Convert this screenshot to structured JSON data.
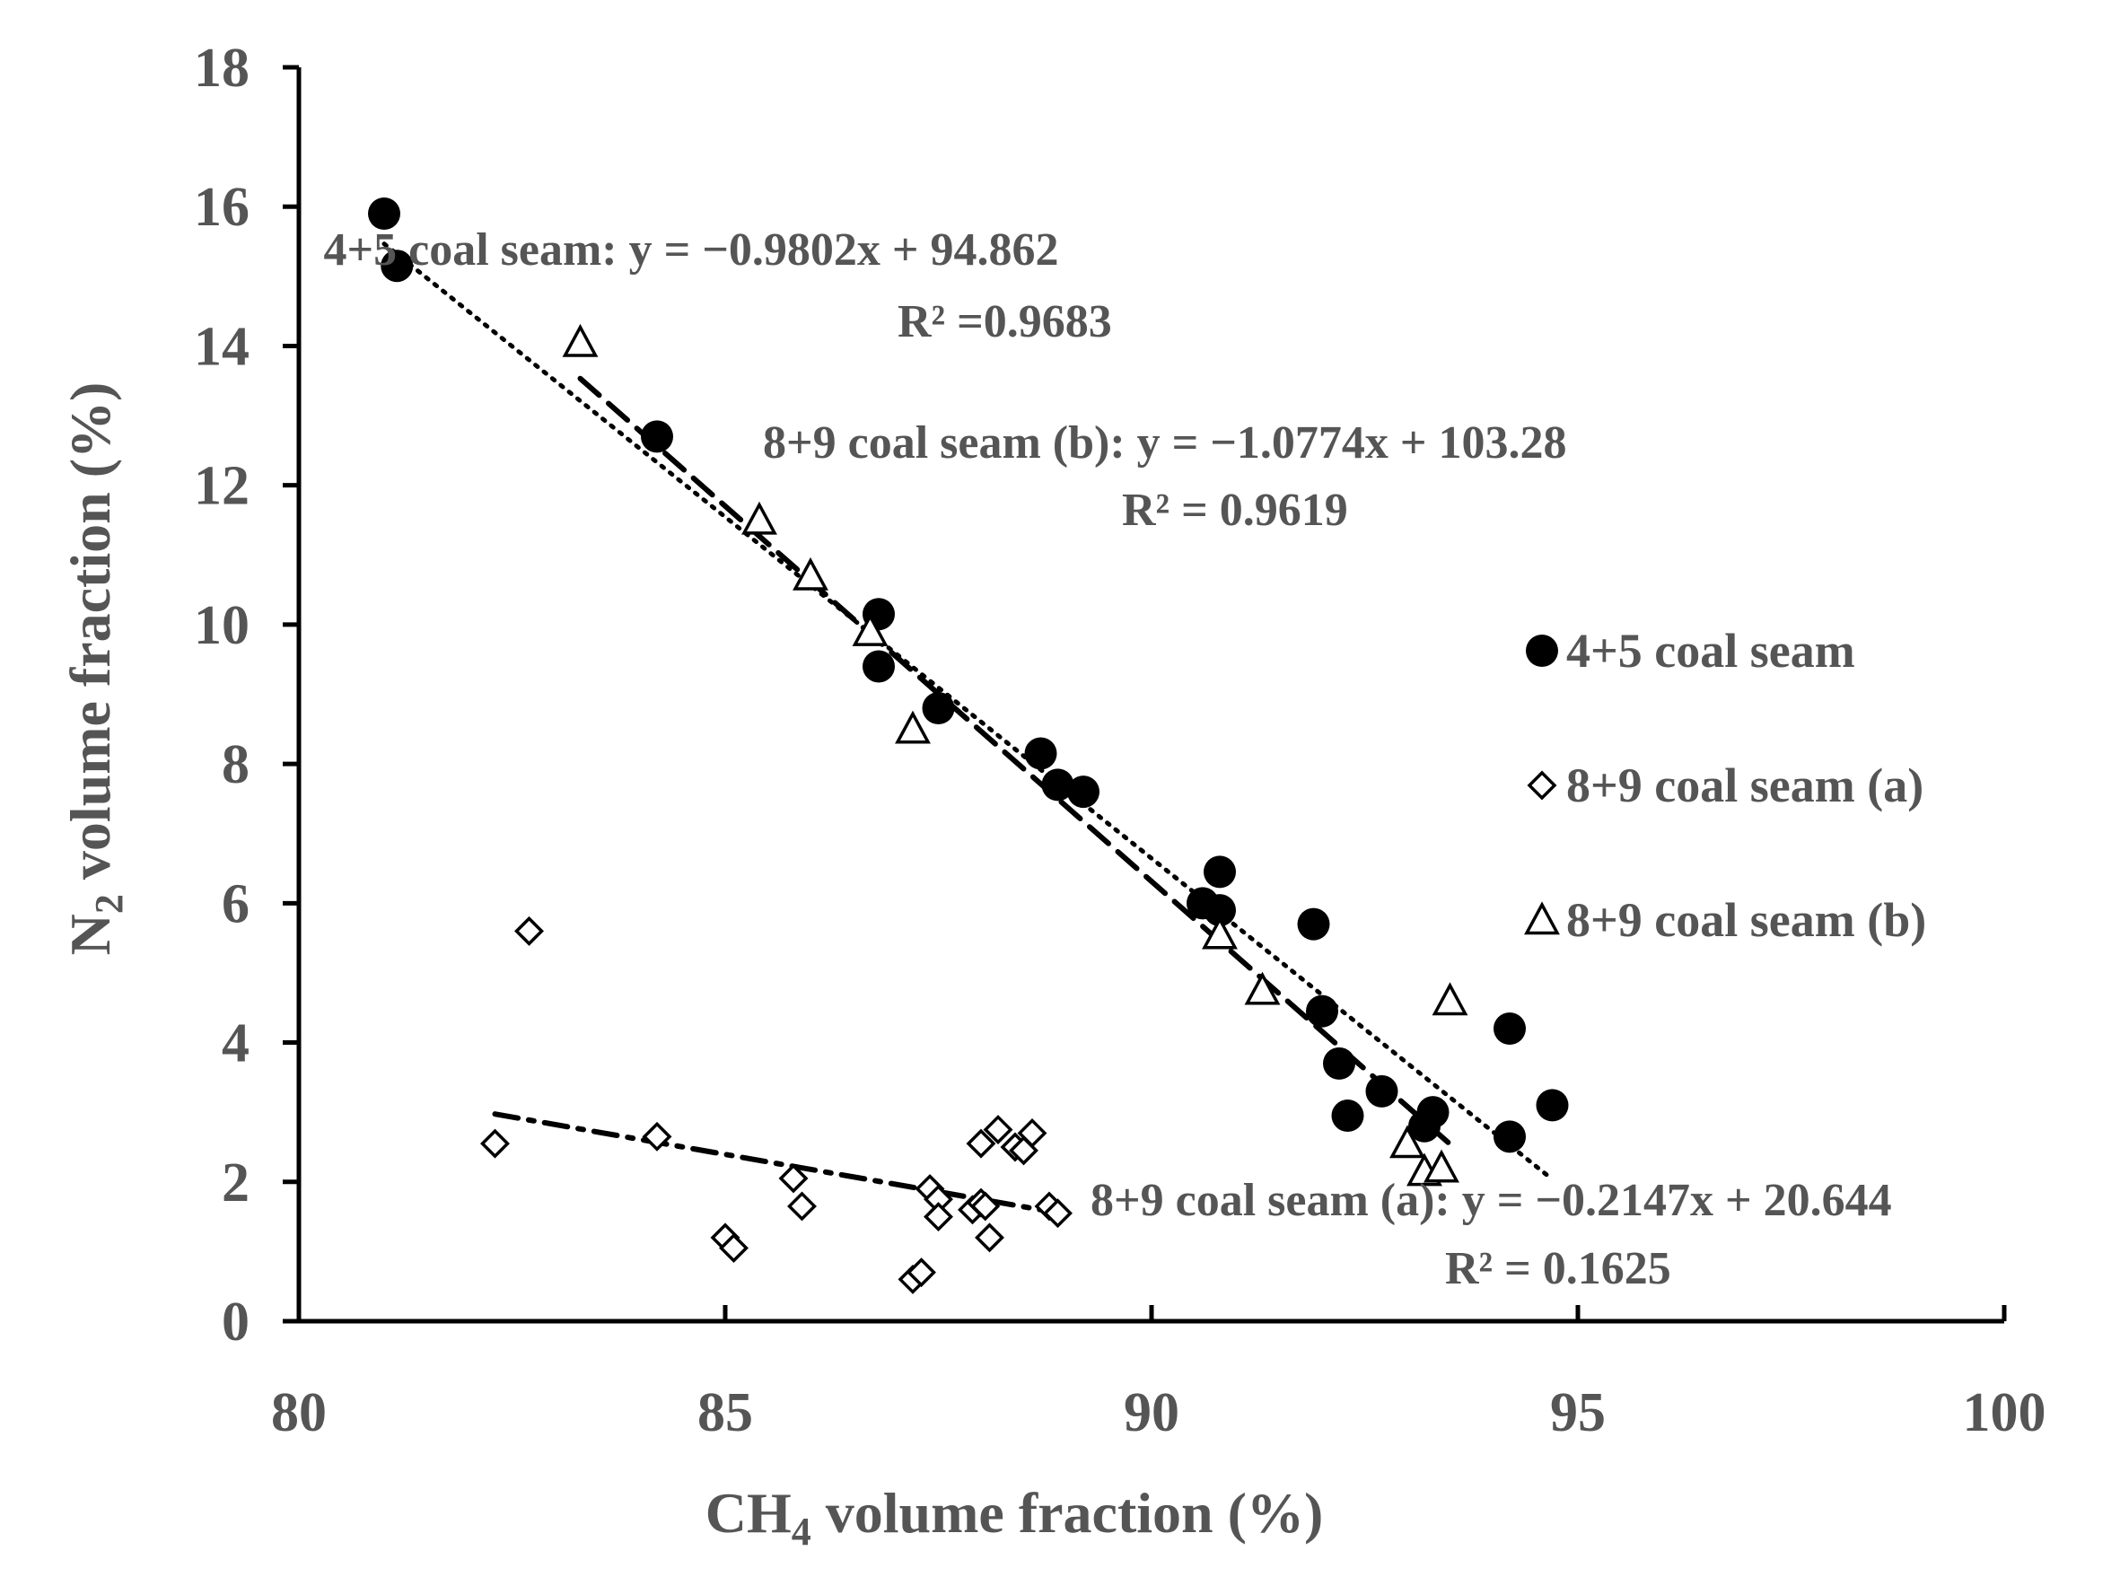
{
  "chart_data": {
    "type": "scatter",
    "xlabel_main": "CH",
    "xlabel_sub": "4",
    "xlabel_rest": " volume fraction (%)",
    "ylabel_main": "N",
    "ylabel_sub": "2",
    "ylabel_rest": " volume fraction (%)",
    "xlim": [
      80,
      100
    ],
    "ylim": [
      0,
      18
    ],
    "xticks": [
      80,
      85,
      90,
      95,
      100
    ],
    "yticks": [
      0,
      2,
      4,
      6,
      8,
      10,
      12,
      14,
      16,
      18
    ],
    "grid": false,
    "legend_position": "right",
    "series": [
      {
        "name": "4+5 coal seam",
        "marker": "filled-circle",
        "color": "#000000",
        "points": [
          [
            81.0,
            15.9
          ],
          [
            81.15,
            15.15
          ],
          [
            84.2,
            12.7
          ],
          [
            86.8,
            10.15
          ],
          [
            86.8,
            9.4
          ],
          [
            87.5,
            8.8
          ],
          [
            88.7,
            8.15
          ],
          [
            88.9,
            7.7
          ],
          [
            89.2,
            7.6
          ],
          [
            90.6,
            6.0
          ],
          [
            90.8,
            5.9
          ],
          [
            90.8,
            6.45
          ],
          [
            91.9,
            5.7
          ],
          [
            92.0,
            4.45
          ],
          [
            92.2,
            3.7
          ],
          [
            92.3,
            2.95
          ],
          [
            92.7,
            3.3
          ],
          [
            93.2,
            2.8
          ],
          [
            93.3,
            3.0
          ],
          [
            94.2,
            4.2
          ],
          [
            94.2,
            2.65
          ],
          [
            94.7,
            3.1
          ]
        ]
      },
      {
        "name": "8+9 coal seam (a)",
        "marker": "open-diamond",
        "color": "#000000",
        "points": [
          [
            82.3,
            2.55
          ],
          [
            82.7,
            5.6
          ],
          [
            84.2,
            2.65
          ],
          [
            85.0,
            1.2
          ],
          [
            85.1,
            1.05
          ],
          [
            85.8,
            2.05
          ],
          [
            85.9,
            1.65
          ],
          [
            87.2,
            0.6
          ],
          [
            87.3,
            0.7
          ],
          [
            87.4,
            1.9
          ],
          [
            87.5,
            1.75
          ],
          [
            87.5,
            1.5
          ],
          [
            87.9,
            1.6
          ],
          [
            88.0,
            2.55
          ],
          [
            88.0,
            1.7
          ],
          [
            88.05,
            1.65
          ],
          [
            88.1,
            1.2
          ],
          [
            88.2,
            2.75
          ],
          [
            88.4,
            2.5
          ],
          [
            88.5,
            2.45
          ],
          [
            88.6,
            2.7
          ],
          [
            88.8,
            1.65
          ],
          [
            88.9,
            1.55
          ]
        ]
      },
      {
        "name": "8+9 coal seam (b)",
        "marker": "open-triangle",
        "color": "#000000",
        "points": [
          [
            83.3,
            14.05
          ],
          [
            85.4,
            11.5
          ],
          [
            86.0,
            10.7
          ],
          [
            86.7,
            9.9
          ],
          [
            87.2,
            8.5
          ],
          [
            90.8,
            5.55
          ],
          [
            91.3,
            4.75
          ],
          [
            93.0,
            2.55
          ],
          [
            93.2,
            2.15
          ],
          [
            93.4,
            2.2
          ],
          [
            93.5,
            4.6
          ]
        ]
      }
    ],
    "trendlines": [
      {
        "series": "4+5 coal seam",
        "style": "dotted",
        "slope": -0.9802,
        "intercept": 94.862,
        "x_range": [
          81.0,
          94.7
        ]
      },
      {
        "series": "8+9 coal seam (b)",
        "style": "dashed",
        "slope": -1.0774,
        "intercept": 103.28,
        "x_range": [
          83.3,
          93.5
        ]
      },
      {
        "series": "8+9 coal seam (a)",
        "style": "dash-dot",
        "slope": -0.2147,
        "intercept": 20.644,
        "x_range": [
          82.3,
          88.9
        ]
      }
    ],
    "annotations": {
      "eq45": "4+5 coal seam: y = −0.9802x + 94.862",
      "r45": "R² =0.9683",
      "eq89b": "8+9 coal seam (b): y = −1.0774x + 103.28",
      "r89b": "R² = 0.9619",
      "eq89a": "8+9 coal seam (a): y = −0.2147x + 20.644",
      "r89a": "R² = 0.1625"
    }
  }
}
